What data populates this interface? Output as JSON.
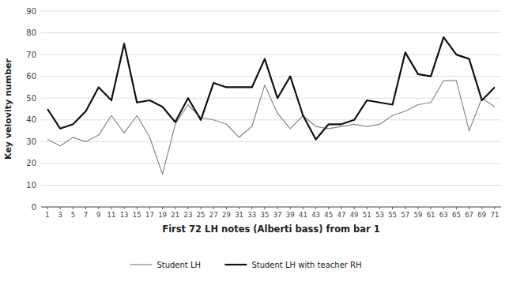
{
  "chart_data": {
    "type": "line",
    "categories": [
      1,
      3,
      5,
      7,
      9,
      11,
      13,
      15,
      17,
      19,
      21,
      23,
      25,
      27,
      29,
      31,
      33,
      35,
      37,
      39,
      41,
      43,
      45,
      47,
      49,
      51,
      53,
      55,
      57,
      59,
      61,
      63,
      65,
      67,
      69,
      71
    ],
    "series": [
      {
        "name": "Student LH",
        "color": "#888888",
        "values": [
          31,
          28,
          32,
          30,
          33,
          42,
          34,
          42,
          32,
          15,
          38,
          47,
          41,
          40,
          38,
          32,
          37,
          56,
          43,
          36,
          42,
          37,
          36,
          37,
          38,
          37,
          38,
          42,
          44,
          47,
          48,
          58,
          58,
          35,
          50,
          46
        ]
      },
      {
        "name": "Student LH with teacher RH",
        "color": "#111111",
        "values": [
          45,
          36,
          38,
          44,
          55,
          49,
          75,
          48,
          49,
          46,
          39,
          50,
          40,
          57,
          55,
          55,
          55,
          68,
          50,
          60,
          42,
          31,
          38,
          38,
          40,
          49,
          48,
          47,
          71,
          61,
          60,
          78,
          70,
          68,
          49,
          55
        ]
      }
    ],
    "x_label": "First 72 LH notes  (Alberti bass) from bar 1",
    "y_label": "Key velovity number",
    "ylim": [
      0,
      90
    ],
    "yticks": [
      0,
      10,
      20,
      30,
      40,
      50,
      60,
      70,
      80,
      90
    ],
    "grid": true,
    "legend": "bottom"
  }
}
